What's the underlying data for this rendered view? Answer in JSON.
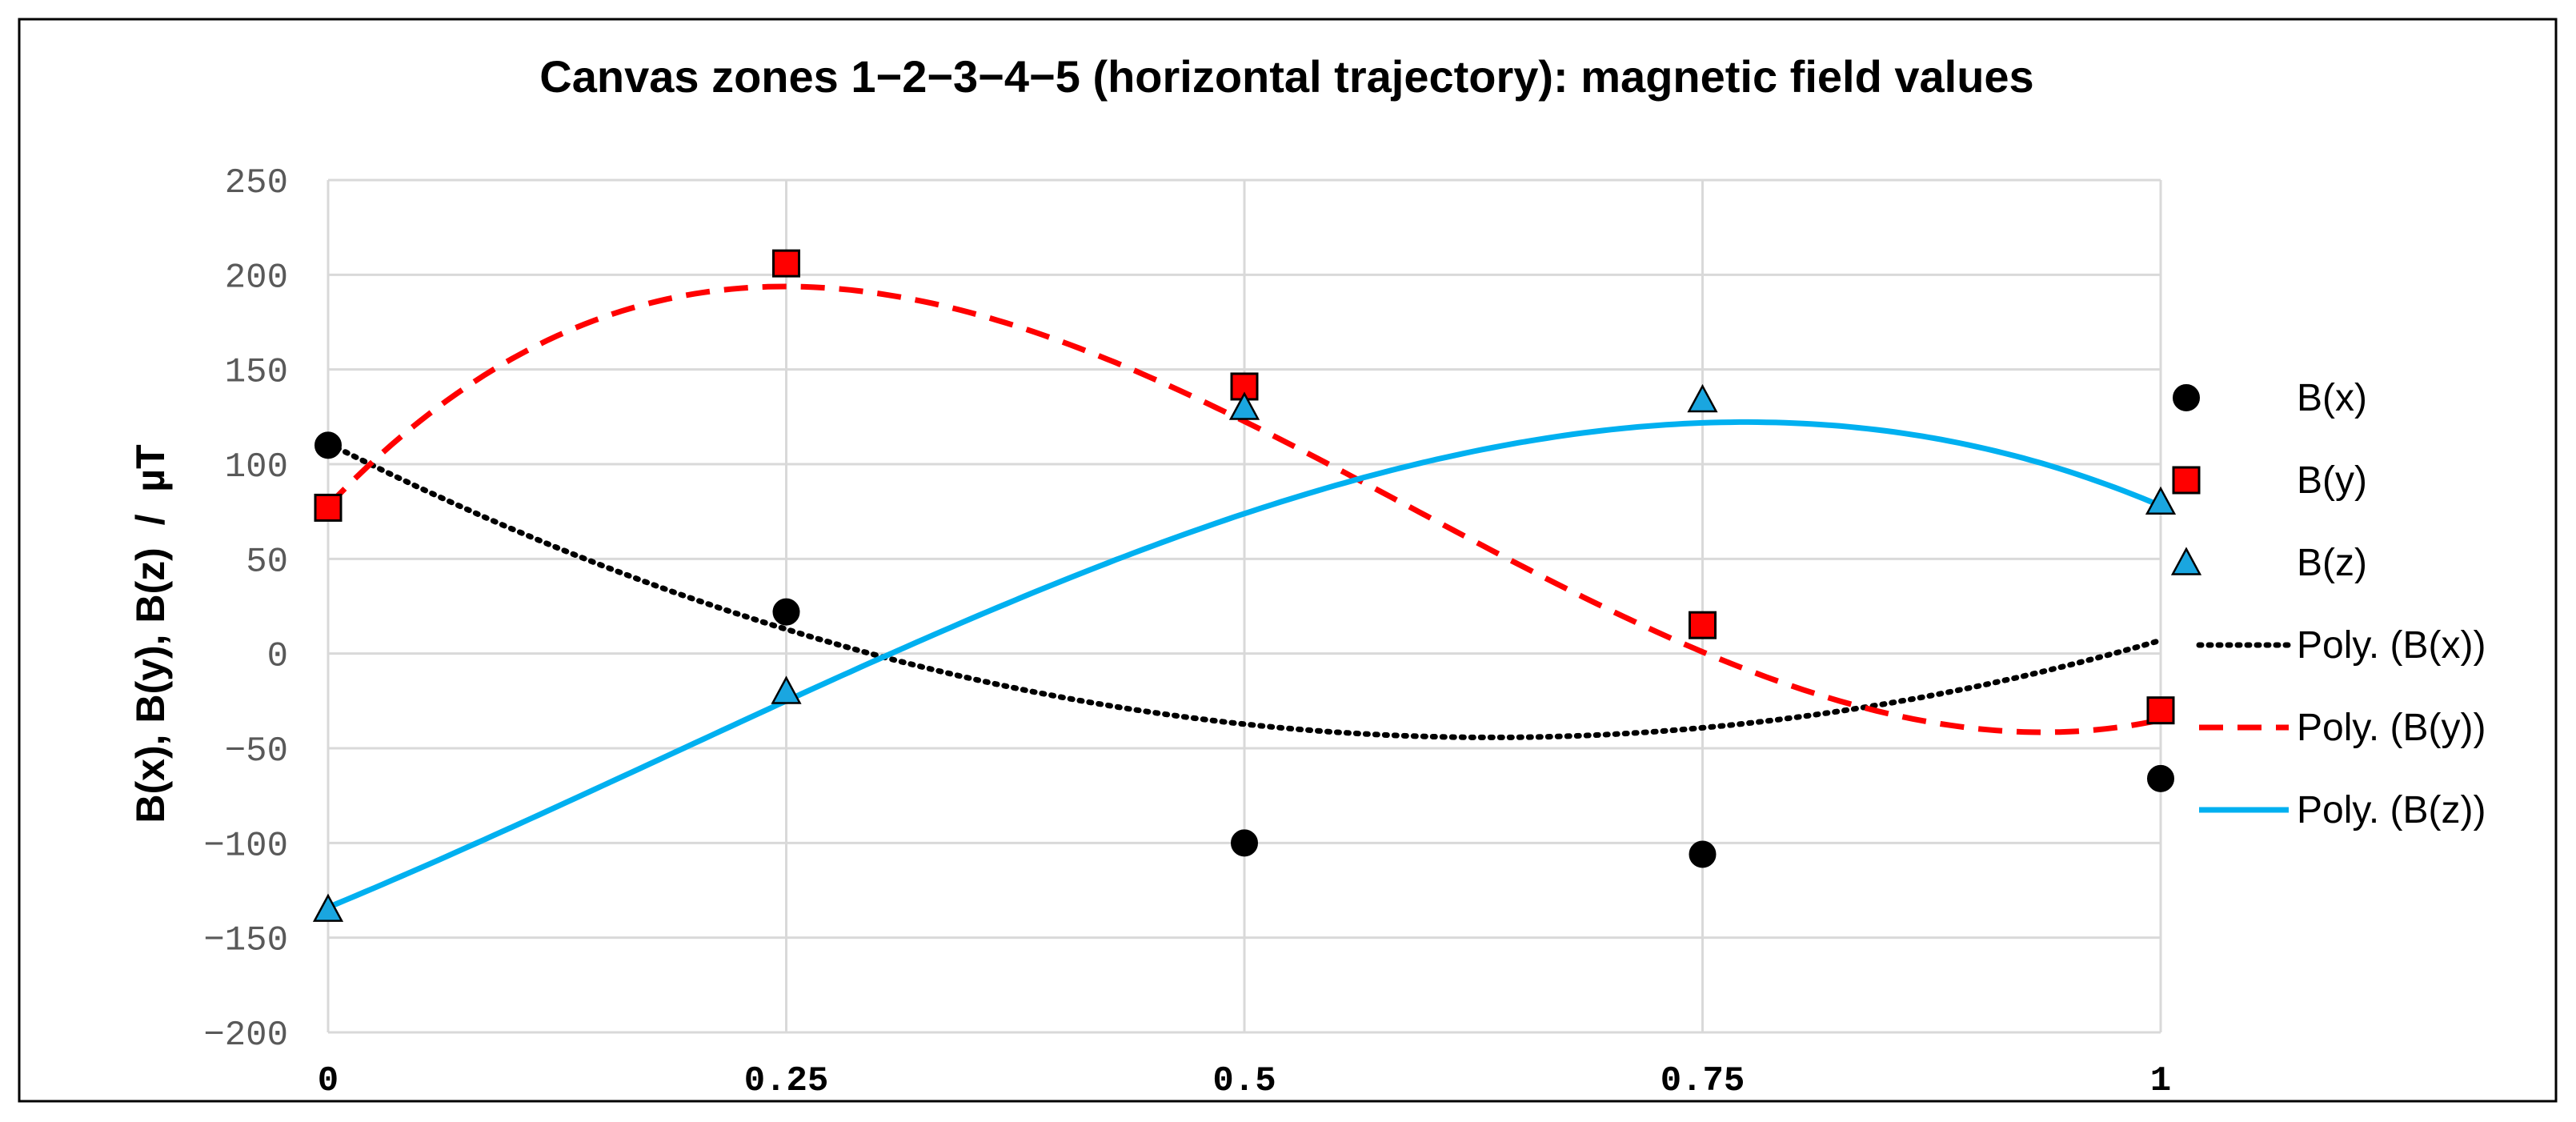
{
  "chart_data": {
    "type": "scatter",
    "title": "Canvas zones 1−2−3−4−5 (horizontal trajectory): magnetic field values",
    "xlabel": "",
    "ylabel": "B(x), B(y), B(z)  /  µT",
    "xlim": [
      0,
      1
    ],
    "ylim": [
      -200,
      250
    ],
    "grid": true,
    "legend_position": "right",
    "x_ticks": [
      0,
      0.25,
      0.5,
      0.75,
      1
    ],
    "x_tick_labels": [
      "0",
      "0.25",
      "0.5",
      "0.75",
      "1"
    ],
    "y_ticks": [
      -200,
      -150,
      -100,
      -50,
      0,
      50,
      100,
      150,
      200,
      250
    ],
    "y_tick_labels": [
      "−200",
      "−150",
      "−100",
      "−50",
      "0",
      "50",
      "100",
      "150",
      "200",
      "250"
    ],
    "x": [
      0,
      0.25,
      0.5,
      0.75,
      1
    ],
    "series": [
      {
        "name": "B(x)",
        "marker": "circle",
        "color": "#000000",
        "values": [
          110,
          22,
          -100,
          -106,
          -66
        ]
      },
      {
        "name": "B(y)",
        "marker": "square",
        "color": "#ff0000",
        "values": [
          77,
          206,
          141,
          15,
          -30
        ]
      },
      {
        "name": "B(z)",
        "marker": "triangle",
        "color": "#1aa6e0",
        "values": [
          -135,
          -20,
          130,
          134,
          80
        ]
      }
    ],
    "trendlines": [
      {
        "name": "Poly. (B(x))",
        "style": "dotted",
        "color": "#000000",
        "coefficients": [
          111,
          -489,
          385,
          0
        ],
        "coefficient_order": "ascending powers of x"
      },
      {
        "name": "Poly. (B(y))",
        "style": "dashed",
        "color": "#ff0000",
        "coefficients": [
          78,
          1019,
          -2587,
          1455
        ],
        "coefficient_order": "ascending powers of x"
      },
      {
        "name": "Poly. (B(z))",
        "style": "solid",
        "color": "#00b0f0",
        "coefficients": [
          -134,
          402,
          245,
          -435
        ],
        "coefficient_order": "ascending powers of x"
      }
    ]
  }
}
